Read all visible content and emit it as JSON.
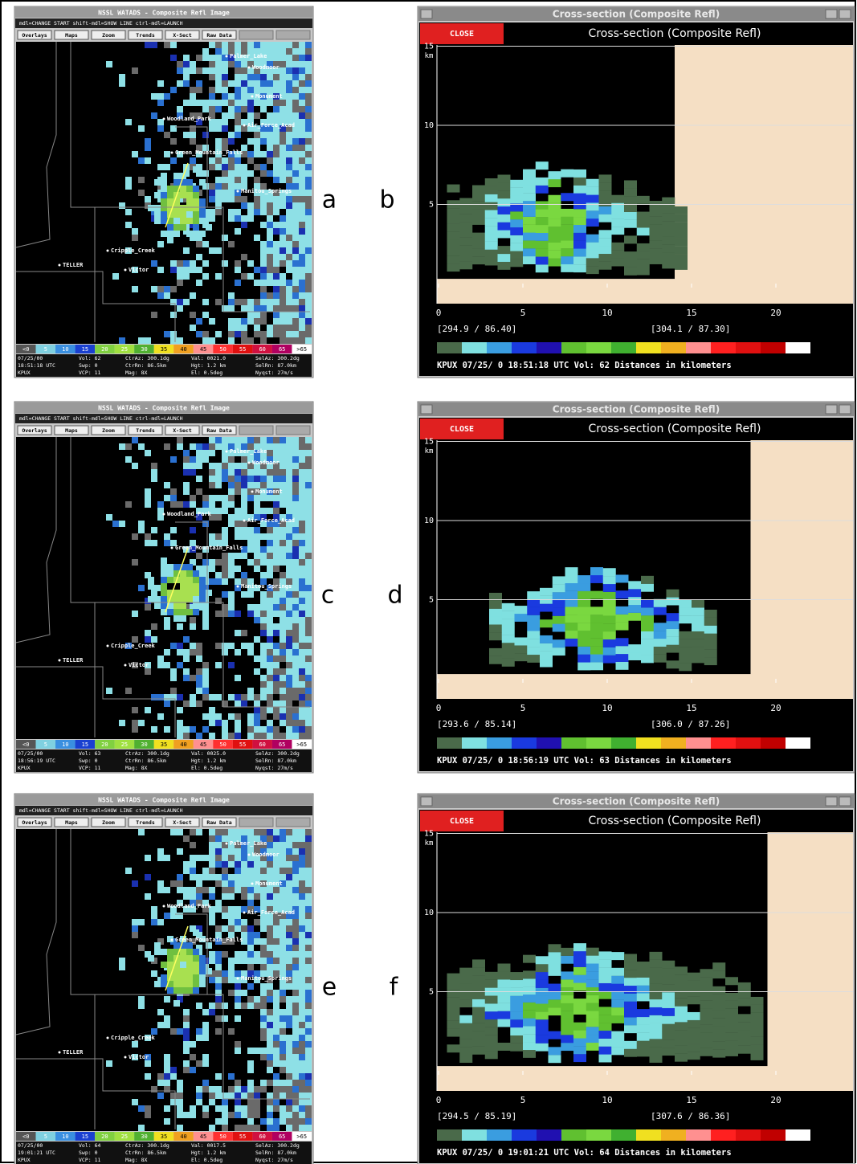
{
  "panels": [
    {
      "radar_label": "a",
      "xsect_label": "b",
      "radar": {
        "title": "NSSL WATADS - Composite Refl Image",
        "menu": "mdl=CHANGE START shift-mdl=SHOW LINE ctrl-mdl=LAUNCH",
        "buttons": [
          "Overlays",
          "Maps",
          "Zoom",
          "Trends",
          "X-Sect",
          "Raw Data"
        ],
        "places": [
          "Palmer_Lake",
          "Woodmoor",
          "Monument",
          "Woodland_Park",
          "Air_Force_Acad",
          "Green_Mountain_Falls",
          "Manitou_Springs",
          "Cripple_Creek",
          "Victor",
          "TELLER"
        ],
        "scale": [
          "<0",
          "5",
          "10",
          "15",
          "20",
          "25",
          "30",
          "35",
          "40",
          "45",
          "50",
          "55",
          "60",
          "65",
          ">65"
        ],
        "status": [
          [
            "07/25/00",
            "Vol:   62",
            "CtrAz: 300.1dg",
            "Val: 0021.0",
            "SelAz: 300.2dg"
          ],
          [
            "18:51:18 UTC",
            "Swp:    0",
            "CtrRn:  86.5km",
            "Hgt:   1.2 km",
            "SelRn:  87.0km"
          ],
          [
            "KPUX",
            "VCP:   11",
            "Mag:      8X",
            "El:   0.5deg",
            "Nyqst:  27m/s"
          ]
        ]
      },
      "xsect": {
        "window_title": "Cross-section (Composite Refl)",
        "close": "CLOSE",
        "heading": "Cross-section (Composite Refl)",
        "y_unit": "km",
        "yticks": [
          5,
          10,
          15
        ],
        "xticks": [
          0,
          5,
          10,
          15,
          20
        ],
        "start": "[294.9 /  86.40]",
        "end": "[304.1 /  87.30]",
        "footer": "KPUX 07/25/ 0 18:51:18 UTC Vol: 62 Distances in kilometers"
      }
    },
    {
      "radar_label": "c",
      "xsect_label": "d",
      "radar": {
        "title": "NSSL WATADS - Composite Refl Image",
        "menu": "mdl=CHANGE START shift-mdl=SHOW LINE ctrl-mdl=LAUNCH",
        "buttons": [
          "Overlays",
          "Maps",
          "Zoom",
          "Trends",
          "X-Sect",
          "Raw Data"
        ],
        "places": [
          "Palmer_Lake",
          "Woodmoor",
          "Monument",
          "Woodland_Park",
          "Air_Force_Acad",
          "Green_Mountain_Falls",
          "Manitou_Springs",
          "Cripple_Creek",
          "Victor",
          "TELLER"
        ],
        "scale": [
          "<0",
          "5",
          "10",
          "15",
          "20",
          "25",
          "30",
          "35",
          "40",
          "45",
          "50",
          "55",
          "60",
          "65",
          ">65"
        ],
        "status": [
          [
            "07/25/00",
            "Vol:   63",
            "CtrAz: 300.1dg",
            "Val: 0025.0",
            "SelAz: 300.2dg"
          ],
          [
            "18:56:19 UTC",
            "Swp:    0",
            "CtrRn:  86.5km",
            "Hgt:   1.2 km",
            "SelRn:  87.0km"
          ],
          [
            "KPUX",
            "VCP:   11",
            "Mag:      8X",
            "El:   0.5deg",
            "Nyqst:  27m/s"
          ]
        ]
      },
      "xsect": {
        "window_title": "Cross-section (Composite Refl)",
        "close": "CLOSE",
        "heading": "Cross-section (Composite Refl)",
        "y_unit": "km",
        "yticks": [
          5,
          10,
          15
        ],
        "xticks": [
          0,
          5,
          10,
          15,
          20
        ],
        "start": "[293.6 /  85.14]",
        "end": "[306.0 /  87.26]",
        "footer": "KPUX 07/25/ 0 18:56:19 UTC Vol: 63 Distances in kilometers"
      }
    },
    {
      "radar_label": "e",
      "xsect_label": "f",
      "radar": {
        "title": "NSSL WATADS - Composite Refl Image",
        "menu": "mdl=CHANGE START shift-mdl=SHOW LINE ctrl-mdl=LAUNCH",
        "buttons": [
          "Overlays",
          "Maps",
          "Zoom",
          "Trends",
          "X-Sect",
          "Raw Data"
        ],
        "places": [
          "Palmer_Lake",
          "Woodmoor",
          "Monument",
          "Woodland_Park",
          "Air_Force_Acad",
          "Green_Mountain_Falls",
          "Manitou_Springs",
          "Cripple_Creek",
          "Victor",
          "TELLER"
        ],
        "scale": [
          "<0",
          "5",
          "10",
          "15",
          "20",
          "25",
          "30",
          "35",
          "40",
          "45",
          "50",
          "55",
          "60",
          "65",
          ">65"
        ],
        "status": [
          [
            "07/25/00",
            "Vol:   64",
            "CtrAz: 300.1dg",
            "Val: 0017.5",
            "SelAz: 300.2dg"
          ],
          [
            "19:01:21 UTC",
            "Swp:    0",
            "CtrRn:  86.5km",
            "Hgt:   1.2 km",
            "SelRn:  87.0km"
          ],
          [
            "KPUX",
            "VCP:   11",
            "Mag:      8X",
            "El:   0.5deg",
            "Nyqst:  27m/s"
          ]
        ]
      },
      "xsect": {
        "window_title": "Cross-section (Composite Refl)",
        "close": "CLOSE",
        "heading": "Cross-section (Composite Refl)",
        "y_unit": "km",
        "yticks": [
          5,
          10,
          15
        ],
        "xticks": [
          0,
          5,
          10,
          15,
          20
        ],
        "start": "[294.5 /  85.19]",
        "end": "[307.6 /  86.36]",
        "footer": "KPUX 07/25/ 0 19:01:21 UTC Vol: 64 Distances in kilometers"
      }
    }
  ]
}
